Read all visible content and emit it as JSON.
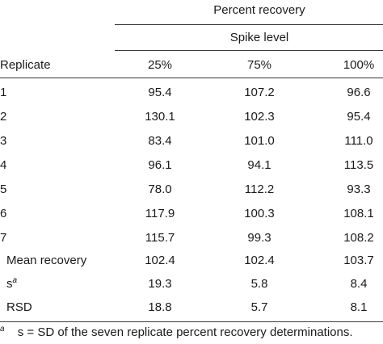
{
  "table": {
    "header": {
      "group_title": "Percent recovery",
      "subgroup_title": "Spike level",
      "row_header": "Replicate",
      "columns": [
        "25%",
        "75%",
        "100%"
      ]
    },
    "rows": [
      {
        "label": "1",
        "values": [
          "95.4",
          "107.2",
          "96.6"
        ]
      },
      {
        "label": "2",
        "values": [
          "130.1",
          "102.3",
          "95.4"
        ]
      },
      {
        "label": "3",
        "values": [
          "83.4",
          "101.0",
          "111.0"
        ]
      },
      {
        "label": "4",
        "values": [
          "96.1",
          "94.1",
          "113.5"
        ]
      },
      {
        "label": "5",
        "values": [
          "78.0",
          "112.2",
          "93.3"
        ]
      },
      {
        "label": "6",
        "values": [
          "117.9",
          "100.3",
          "108.1"
        ]
      },
      {
        "label": "7",
        "values": [
          "115.7",
          "99.3",
          "108.2"
        ]
      }
    ],
    "summary": [
      {
        "label": "Mean recovery",
        "values": [
          "102.4",
          "102.4",
          "103.7"
        ]
      },
      {
        "label": "s",
        "sup": "a",
        "values": [
          "19.3",
          "5.8",
          "8.4"
        ]
      },
      {
        "label": "RSD",
        "values": [
          "18.8",
          "5.7",
          "8.1"
        ]
      }
    ],
    "footnote": {
      "mark": "a",
      "text": "s = SD of the seven replicate percent recovery determinations."
    }
  }
}
